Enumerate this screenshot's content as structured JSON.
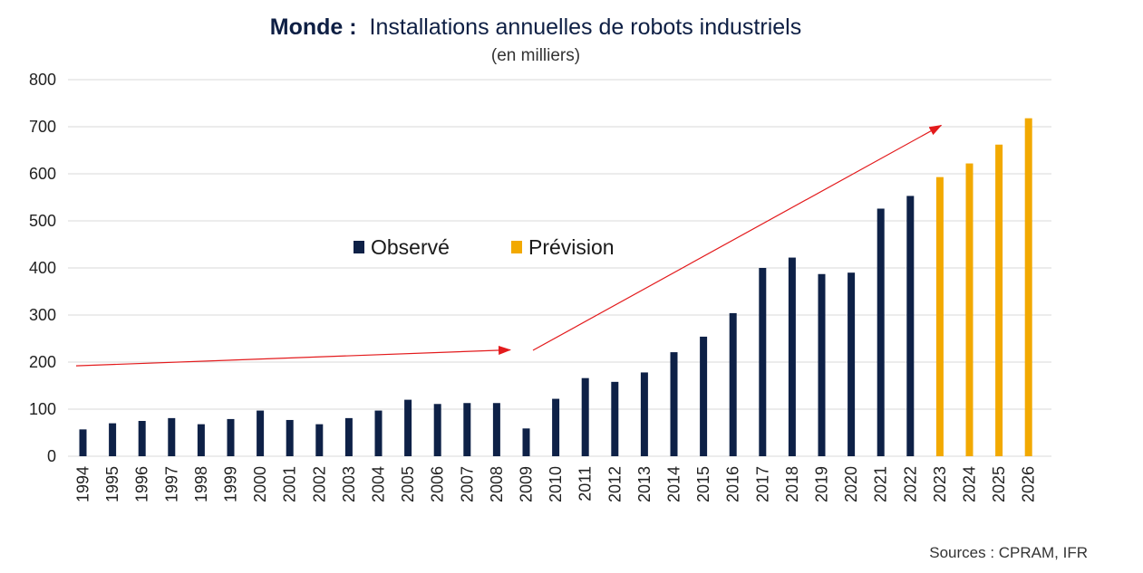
{
  "colors": {
    "observed": "#0e2147",
    "forecast": "#f2a900",
    "grid": "#d9d9d9",
    "arrow": "#e31a1c"
  },
  "chart_data": {
    "type": "bar",
    "title_bold": "Monde :",
    "title_rest": "Installations annuelles de robots industriels",
    "subtitle": "(en milliers)",
    "ylim": [
      0,
      800
    ],
    "yticks": [
      "0",
      "100",
      "200",
      "300",
      "400",
      "500",
      "600",
      "700",
      "800"
    ],
    "categories": [
      "1994",
      "1995",
      "1996",
      "1997",
      "1998",
      "1999",
      "2000",
      "2001",
      "2002",
      "2003",
      "2004",
      "2005",
      "2006",
      "2007",
      "2008",
      "2009",
      "2010",
      "2011",
      "2012",
      "2013",
      "2014",
      "2015",
      "2016",
      "2017",
      "2018",
      "2019",
      "2020",
      "2021",
      "2022",
      "2023",
      "2024",
      "2025",
      "2026"
    ],
    "series": [
      {
        "name": "Observé",
        "values": [
          57,
          70,
          75,
          81,
          68,
          79,
          97,
          77,
          68,
          81,
          97,
          120,
          111,
          113,
          113,
          59,
          122,
          166,
          158,
          178,
          221,
          254,
          304,
          400,
          422,
          387,
          390,
          526,
          553,
          null,
          null,
          null,
          null
        ]
      },
      {
        "name": "Prévision",
        "values": [
          null,
          null,
          null,
          null,
          null,
          null,
          null,
          null,
          null,
          null,
          null,
          null,
          null,
          null,
          null,
          null,
          null,
          null,
          null,
          null,
          null,
          null,
          null,
          null,
          null,
          null,
          null,
          null,
          null,
          593,
          622,
          662,
          718
        ]
      }
    ],
    "legend": [
      "Observé",
      "Prévision"
    ],
    "legend_position": "center",
    "annotations": [
      {
        "type": "arrow",
        "from": {
          "x": "1994",
          "y": 192
        },
        "to": {
          "x": "2009",
          "y": 226
        }
      },
      {
        "type": "arrow",
        "from": {
          "x": "2009",
          "y": 225
        },
        "to": {
          "x": "2023",
          "y": 703
        }
      }
    ],
    "source": "Sources : CPRAM, IFR"
  }
}
